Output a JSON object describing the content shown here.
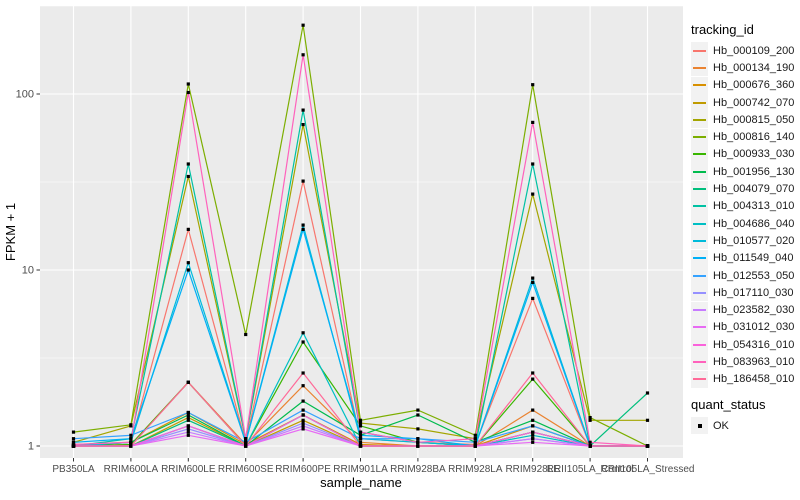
{
  "chart_data": {
    "type": "line",
    "title": "",
    "xlabel": "sample_name",
    "ylabel": "FPKM + 1",
    "y_scale": "log10",
    "y_ticks": [
      1,
      10,
      100
    ],
    "y_tick_labels": [
      "1",
      "10",
      "100"
    ],
    "y_minor_ticks": [
      3.162,
      31.62,
      316.2
    ],
    "ylim": [
      0.85,
      320
    ],
    "grid": true,
    "panel_bg": "#EBEBEB",
    "grid_color": "#FFFFFF",
    "axis_text_color": "#4D4D4D",
    "marker": {
      "shape": "filled-square",
      "color": "#000000",
      "size": 3.2
    },
    "legend_position": "right",
    "categories": [
      "PB350LA",
      "RRIM600LA",
      "RRIM600LE",
      "RRIM600SE",
      "RRIM600PE",
      "RRIM901LA",
      "RRIM928BA",
      "RRIM928LA",
      "RRIM928LE",
      "RRII105LA_Control",
      "RRII105LA_Stressed"
    ],
    "series": [
      {
        "name": "Hb_000109_200",
        "color": "#F8766D",
        "values": [
          1.02,
          1.05,
          17,
          1.05,
          32,
          1.1,
          1.05,
          1.02,
          6.9,
          1.0,
          1.0
        ]
      },
      {
        "name": "Hb_000134_190",
        "color": "#EA8331",
        "values": [
          1.0,
          1.02,
          2.3,
          1.02,
          2.2,
          1.05,
          1.0,
          1.0,
          1.6,
          1.0,
          1.0
        ]
      },
      {
        "name": "Hb_000676_360",
        "color": "#D89000",
        "values": [
          1.0,
          1.05,
          1.55,
          1.02,
          1.5,
          1.02,
          1.0,
          1.0,
          1.3,
          1.0,
          1.0
        ]
      },
      {
        "name": "Hb_000742_070",
        "color": "#C09B00",
        "values": [
          1.0,
          1.0,
          1.45,
          1.0,
          1.4,
          1.0,
          1.0,
          1.0,
          1.2,
          1.0,
          1.0
        ]
      },
      {
        "name": "Hb_000815_050",
        "color": "#A3A500",
        "values": [
          1.05,
          1.3,
          34,
          1.1,
          67,
          1.35,
          1.25,
          1.1,
          27,
          1.4,
          1.4
        ]
      },
      {
        "name": "Hb_000816_140",
        "color": "#7CAE00",
        "values": [
          1.2,
          1.32,
          114,
          4.3,
          246,
          1.4,
          1.6,
          1.15,
          113,
          1.45,
          1.0
        ]
      },
      {
        "name": "Hb_000933_030",
        "color": "#39B600",
        "values": [
          1.0,
          1.02,
          2.3,
          1.0,
          3.9,
          1.3,
          1.05,
          1.0,
          2.4,
          1.0,
          1.0
        ]
      },
      {
        "name": "Hb_001956_130",
        "color": "#00BB4E",
        "values": [
          1.0,
          1.05,
          1.5,
          1.0,
          1.8,
          1.15,
          1.5,
          1.05,
          1.4,
          1.0,
          1.0
        ]
      },
      {
        "name": "Hb_004079_070",
        "color": "#00BF7D",
        "values": [
          1.0,
          1.0,
          1.4,
          1.0,
          1.5,
          1.0,
          1.0,
          1.0,
          1.2,
          1.0,
          2.0
        ]
      },
      {
        "name": "Hb_004313_010",
        "color": "#00C1A3",
        "values": [
          1.0,
          1.1,
          40,
          1.1,
          81,
          1.2,
          1.05,
          1.0,
          40,
          1.0,
          1.0
        ]
      },
      {
        "name": "Hb_004686_040",
        "color": "#00BFC4",
        "values": [
          1.0,
          1.0,
          1.3,
          1.0,
          4.4,
          1.0,
          1.0,
          1.0,
          1.15,
          1.0,
          1.0
        ]
      },
      {
        "name": "Hb_010577_020",
        "color": "#00BBDA",
        "values": [
          1.0,
          1.05,
          11,
          1.05,
          18,
          1.1,
          1.05,
          1.0,
          9.0,
          1.0,
          1.0
        ]
      },
      {
        "name": "Hb_011549_040",
        "color": "#00B0F6",
        "values": [
          1.05,
          1.1,
          10,
          1.05,
          17,
          1.15,
          1.1,
          1.0,
          8.5,
          1.0,
          1.0
        ]
      },
      {
        "name": "Hb_012553_050",
        "color": "#35A2FF",
        "values": [
          1.1,
          1.15,
          1.55,
          1.05,
          1.6,
          1.1,
          1.1,
          1.05,
          1.3,
          1.0,
          1.0
        ]
      },
      {
        "name": "Hb_017110_030",
        "color": "#9590FF",
        "values": [
          1.0,
          1.0,
          1.25,
          1.0,
          1.35,
          1.0,
          1.0,
          1.0,
          1.1,
          1.0,
          1.0
        ]
      },
      {
        "name": "Hb_023582_030",
        "color": "#C77CFF",
        "values": [
          1.0,
          1.0,
          1.2,
          1.0,
          1.3,
          1.0,
          1.0,
          1.0,
          1.1,
          1.0,
          1.0
        ]
      },
      {
        "name": "Hb_031012_030",
        "color": "#E76BF3",
        "values": [
          1.0,
          1.0,
          1.15,
          1.0,
          1.25,
          1.0,
          1.0,
          1.0,
          1.05,
          1.0,
          1.0
        ]
      },
      {
        "name": "Hb_054316_010",
        "color": "#FA62DB",
        "values": [
          1.0,
          1.0,
          1.3,
          1.0,
          1.5,
          1.0,
          1.0,
          1.0,
          1.2,
          1.0,
          1.0
        ]
      },
      {
        "name": "Hb_083963_010",
        "color": "#FF62BC",
        "values": [
          1.02,
          1.05,
          102,
          1.1,
          167,
          1.2,
          1.05,
          1.1,
          69,
          1.05,
          1.0
        ]
      },
      {
        "name": "Hb_186458_010",
        "color": "#FF6A98",
        "values": [
          1.0,
          1.0,
          2.3,
          1.0,
          2.6,
          1.0,
          1.0,
          1.0,
          2.6,
          1.0,
          1.0
        ]
      }
    ]
  },
  "legend": {
    "tracking_title": "tracking_id",
    "quant_title": "quant_status",
    "quant_label": "OK"
  }
}
